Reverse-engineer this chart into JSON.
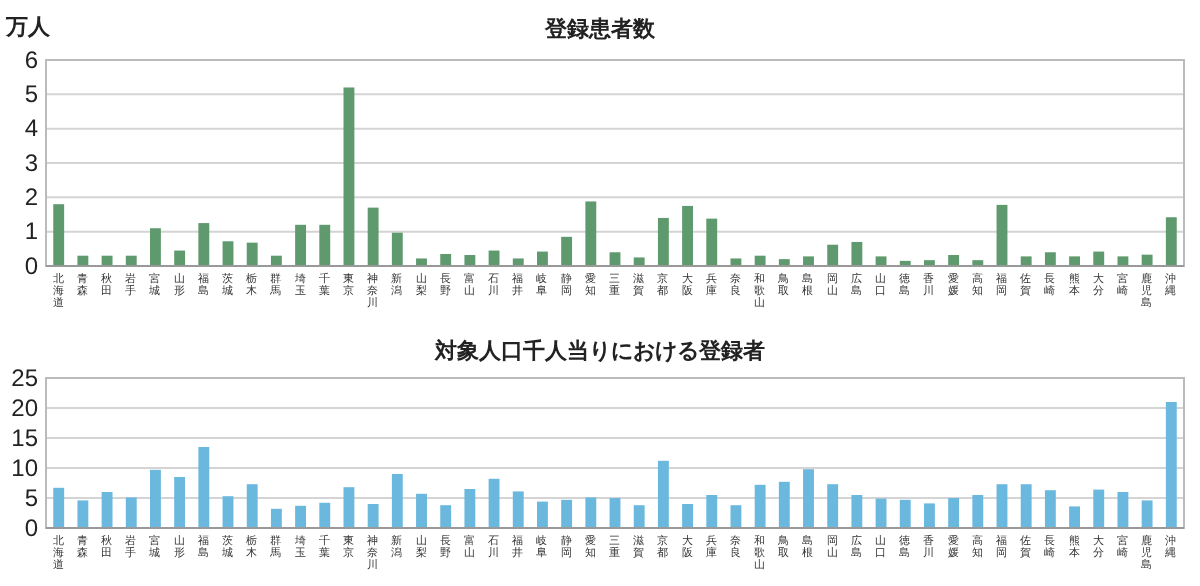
{
  "chart_data": [
    {
      "type": "bar",
      "title": "登録患者数",
      "ylabel": "万人",
      "categories": [
        "北海道",
        "青森",
        "秋田",
        "岩手",
        "宮城",
        "山形",
        "福島",
        "茨城",
        "栃木",
        "群馬",
        "埼玉",
        "千葉",
        "東京",
        "神奈川",
        "新潟",
        "山梨",
        "長野",
        "富山",
        "石川",
        "福井",
        "岐阜",
        "静岡",
        "愛知",
        "三重",
        "滋賀",
        "京都",
        "大阪",
        "兵庫",
        "奈良",
        "和歌山",
        "鳥取",
        "島根",
        "岡山",
        "広島",
        "山口",
        "徳島",
        "香川",
        "愛媛",
        "高知",
        "福岡",
        "佐賀",
        "長崎",
        "熊本",
        "大分",
        "宮崎",
        "鹿児島",
        "沖縄"
      ],
      "values": [
        1.8,
        0.3,
        0.3,
        0.3,
        1.1,
        0.45,
        1.25,
        0.72,
        0.68,
        0.3,
        1.2,
        1.2,
        5.2,
        1.7,
        0.97,
        0.22,
        0.35,
        0.32,
        0.45,
        0.22,
        0.42,
        0.85,
        1.88,
        0.4,
        0.25,
        1.4,
        1.75,
        1.38,
        0.22,
        0.3,
        0.2,
        0.28,
        0.62,
        0.7,
        0.28,
        0.15,
        0.17,
        0.32,
        0.17,
        1.78,
        0.28,
        0.4,
        0.28,
        0.42,
        0.28,
        0.33,
        1.42
      ],
      "color": "#5f9a6e",
      "ylim": [
        0,
        6
      ],
      "yticks": [
        0,
        1,
        2,
        3,
        4,
        5,
        6
      ],
      "grid": "y"
    },
    {
      "type": "bar",
      "title": "対象人口千人当りにおける登録者",
      "categories": [
        "北海道",
        "青森",
        "秋田",
        "岩手",
        "宮城",
        "山形",
        "福島",
        "茨城",
        "栃木",
        "群馬",
        "埼玉",
        "千葉",
        "東京",
        "神奈川",
        "新潟",
        "山梨",
        "長野",
        "富山",
        "石川",
        "福井",
        "岐阜",
        "静岡",
        "愛知",
        "三重",
        "滋賀",
        "京都",
        "大阪",
        "兵庫",
        "奈良",
        "和歌山",
        "鳥取",
        "島根",
        "岡山",
        "広島",
        "山口",
        "徳島",
        "香川",
        "愛媛",
        "高知",
        "福岡",
        "佐賀",
        "長崎",
        "熊本",
        "大分",
        "宮崎",
        "鹿児島",
        "沖縄"
      ],
      "values": [
        6.7,
        4.6,
        6.0,
        5.1,
        9.7,
        8.5,
        13.5,
        5.3,
        7.3,
        3.2,
        3.7,
        4.2,
        6.8,
        4.0,
        9.0,
        5.7,
        3.8,
        6.5,
        8.2,
        6.1,
        4.4,
        4.7,
        5.1,
        5.0,
        3.8,
        11.2,
        4.0,
        5.5,
        3.8,
        7.2,
        7.7,
        9.8,
        7.3,
        5.5,
        4.9,
        4.7,
        4.1,
        5.0,
        5.5,
        7.3,
        7.3,
        6.3,
        3.6,
        6.4,
        6.0,
        4.6,
        21.0
      ],
      "color": "#6bb8de",
      "ylim": [
        0,
        25
      ],
      "yticks": [
        0,
        5,
        10,
        15,
        20,
        25
      ],
      "grid": "y"
    }
  ]
}
